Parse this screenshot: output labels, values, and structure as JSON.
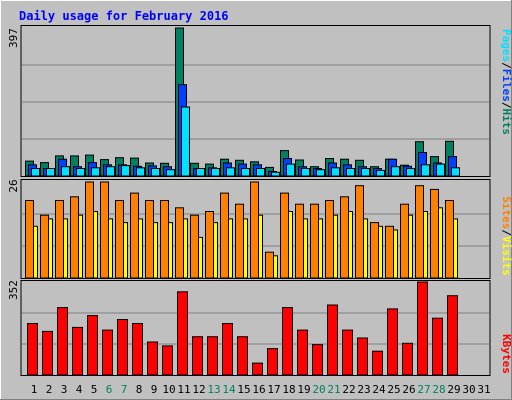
{
  "chart_data": {
    "type": "bar",
    "title": "Daily usage for February 2016",
    "categories": [
      "1",
      "2",
      "3",
      "4",
      "5",
      "6",
      "7",
      "8",
      "9",
      "10",
      "11",
      "12",
      "13",
      "14",
      "15",
      "16",
      "17",
      "18",
      "19",
      "20",
      "21",
      "22",
      "23",
      "24",
      "25",
      "26",
      "27",
      "28",
      "29",
      "30",
      "31"
    ],
    "weekend_days": [
      "6",
      "7",
      "13",
      "14",
      "20",
      "21",
      "27",
      "28"
    ],
    "panels": [
      {
        "id": "hits",
        "max_label": "397",
        "ylim": [
          0,
          397
        ],
        "legend": [
          {
            "text": "Pages",
            "color": "#00e0ff"
          },
          {
            "text": "/",
            "color": "#000000"
          },
          {
            "text": "Files",
            "color": "#0040ff"
          },
          {
            "text": "/",
            "color": "#000000"
          },
          {
            "text": "Hits",
            "color": "#008060"
          }
        ],
        "series": [
          {
            "name": "Hits",
            "color": "#008060",
            "values": [
              40,
              36,
              54,
              54,
              56,
              44,
              49,
              48,
              35,
              34,
              397,
              34,
              32,
              45,
              42,
              38,
              23,
              68,
              43,
              25,
              47,
              45,
              42,
              25,
              45,
              29,
              92,
              52,
              93,
              null,
              null
            ]
          },
          {
            "name": "Files",
            "color": "#0040ff",
            "values": [
              30,
              20,
              45,
              25,
              36,
              30,
              30,
              26,
              27,
              25,
              245,
              20,
              22,
              35,
              32,
              30,
              12,
              47,
              25,
              20,
              35,
              30,
              25,
              20,
              45,
              26,
              63,
              35,
              52,
              null,
              null
            ]
          },
          {
            "name": "Pages",
            "color": "#00e0ff",
            "values": [
              20,
              20,
              25,
              20,
              22,
              25,
              28,
              22,
              20,
              17,
              185,
              20,
              20,
              22,
              20,
              20,
              10,
              32,
              20,
              17,
              22,
              20,
              20,
              15,
              25,
              20,
              30,
              32,
              22,
              null,
              null
            ]
          }
        ]
      },
      {
        "id": "visits",
        "max_label": "26",
        "ylim": [
          0,
          26
        ],
        "legend": [
          {
            "text": "Sites",
            "color": "#ff8000"
          },
          {
            "text": "/",
            "color": "#000000"
          },
          {
            "text": "Visits",
            "color": "#ffff00"
          }
        ],
        "series": [
          {
            "name": "Visits",
            "color": "#ffff00",
            "values": [
              14,
              16,
              16,
              17,
              18,
              16,
              15,
              16,
              15,
              15,
              16,
              11,
              15,
              16,
              16,
              17,
              6,
              18,
              16,
              16,
              17,
              18,
              16,
              14,
              13,
              17,
              18,
              19,
              16,
              null,
              null
            ]
          },
          {
            "name": "Sites",
            "color": "#ff8000",
            "values": [
              21,
              17,
              21,
              22,
              26,
              26,
              21,
              23,
              21,
              21,
              19,
              17,
              18,
              23,
              20,
              26,
              7,
              23,
              20,
              20,
              21,
              22,
              25,
              15,
              14,
              20,
              25,
              24,
              21,
              null,
              null
            ]
          }
        ]
      },
      {
        "id": "kbytes",
        "max_label": "352",
        "ylim": [
          0,
          352
        ],
        "legend": [
          {
            "text": "KBytes",
            "color": "#ff0000"
          }
        ],
        "series": [
          {
            "name": "KBytes",
            "color": "#ff0000",
            "values": [
              195,
              165,
              255,
              180,
              225,
              170,
              210,
              195,
              125,
              110,
              315,
              145,
              145,
              195,
              145,
              45,
              100,
              255,
              170,
              115,
              265,
              170,
              140,
              90,
              250,
              120,
              352,
              215,
              300,
              null,
              null
            ]
          }
        ]
      }
    ]
  }
}
